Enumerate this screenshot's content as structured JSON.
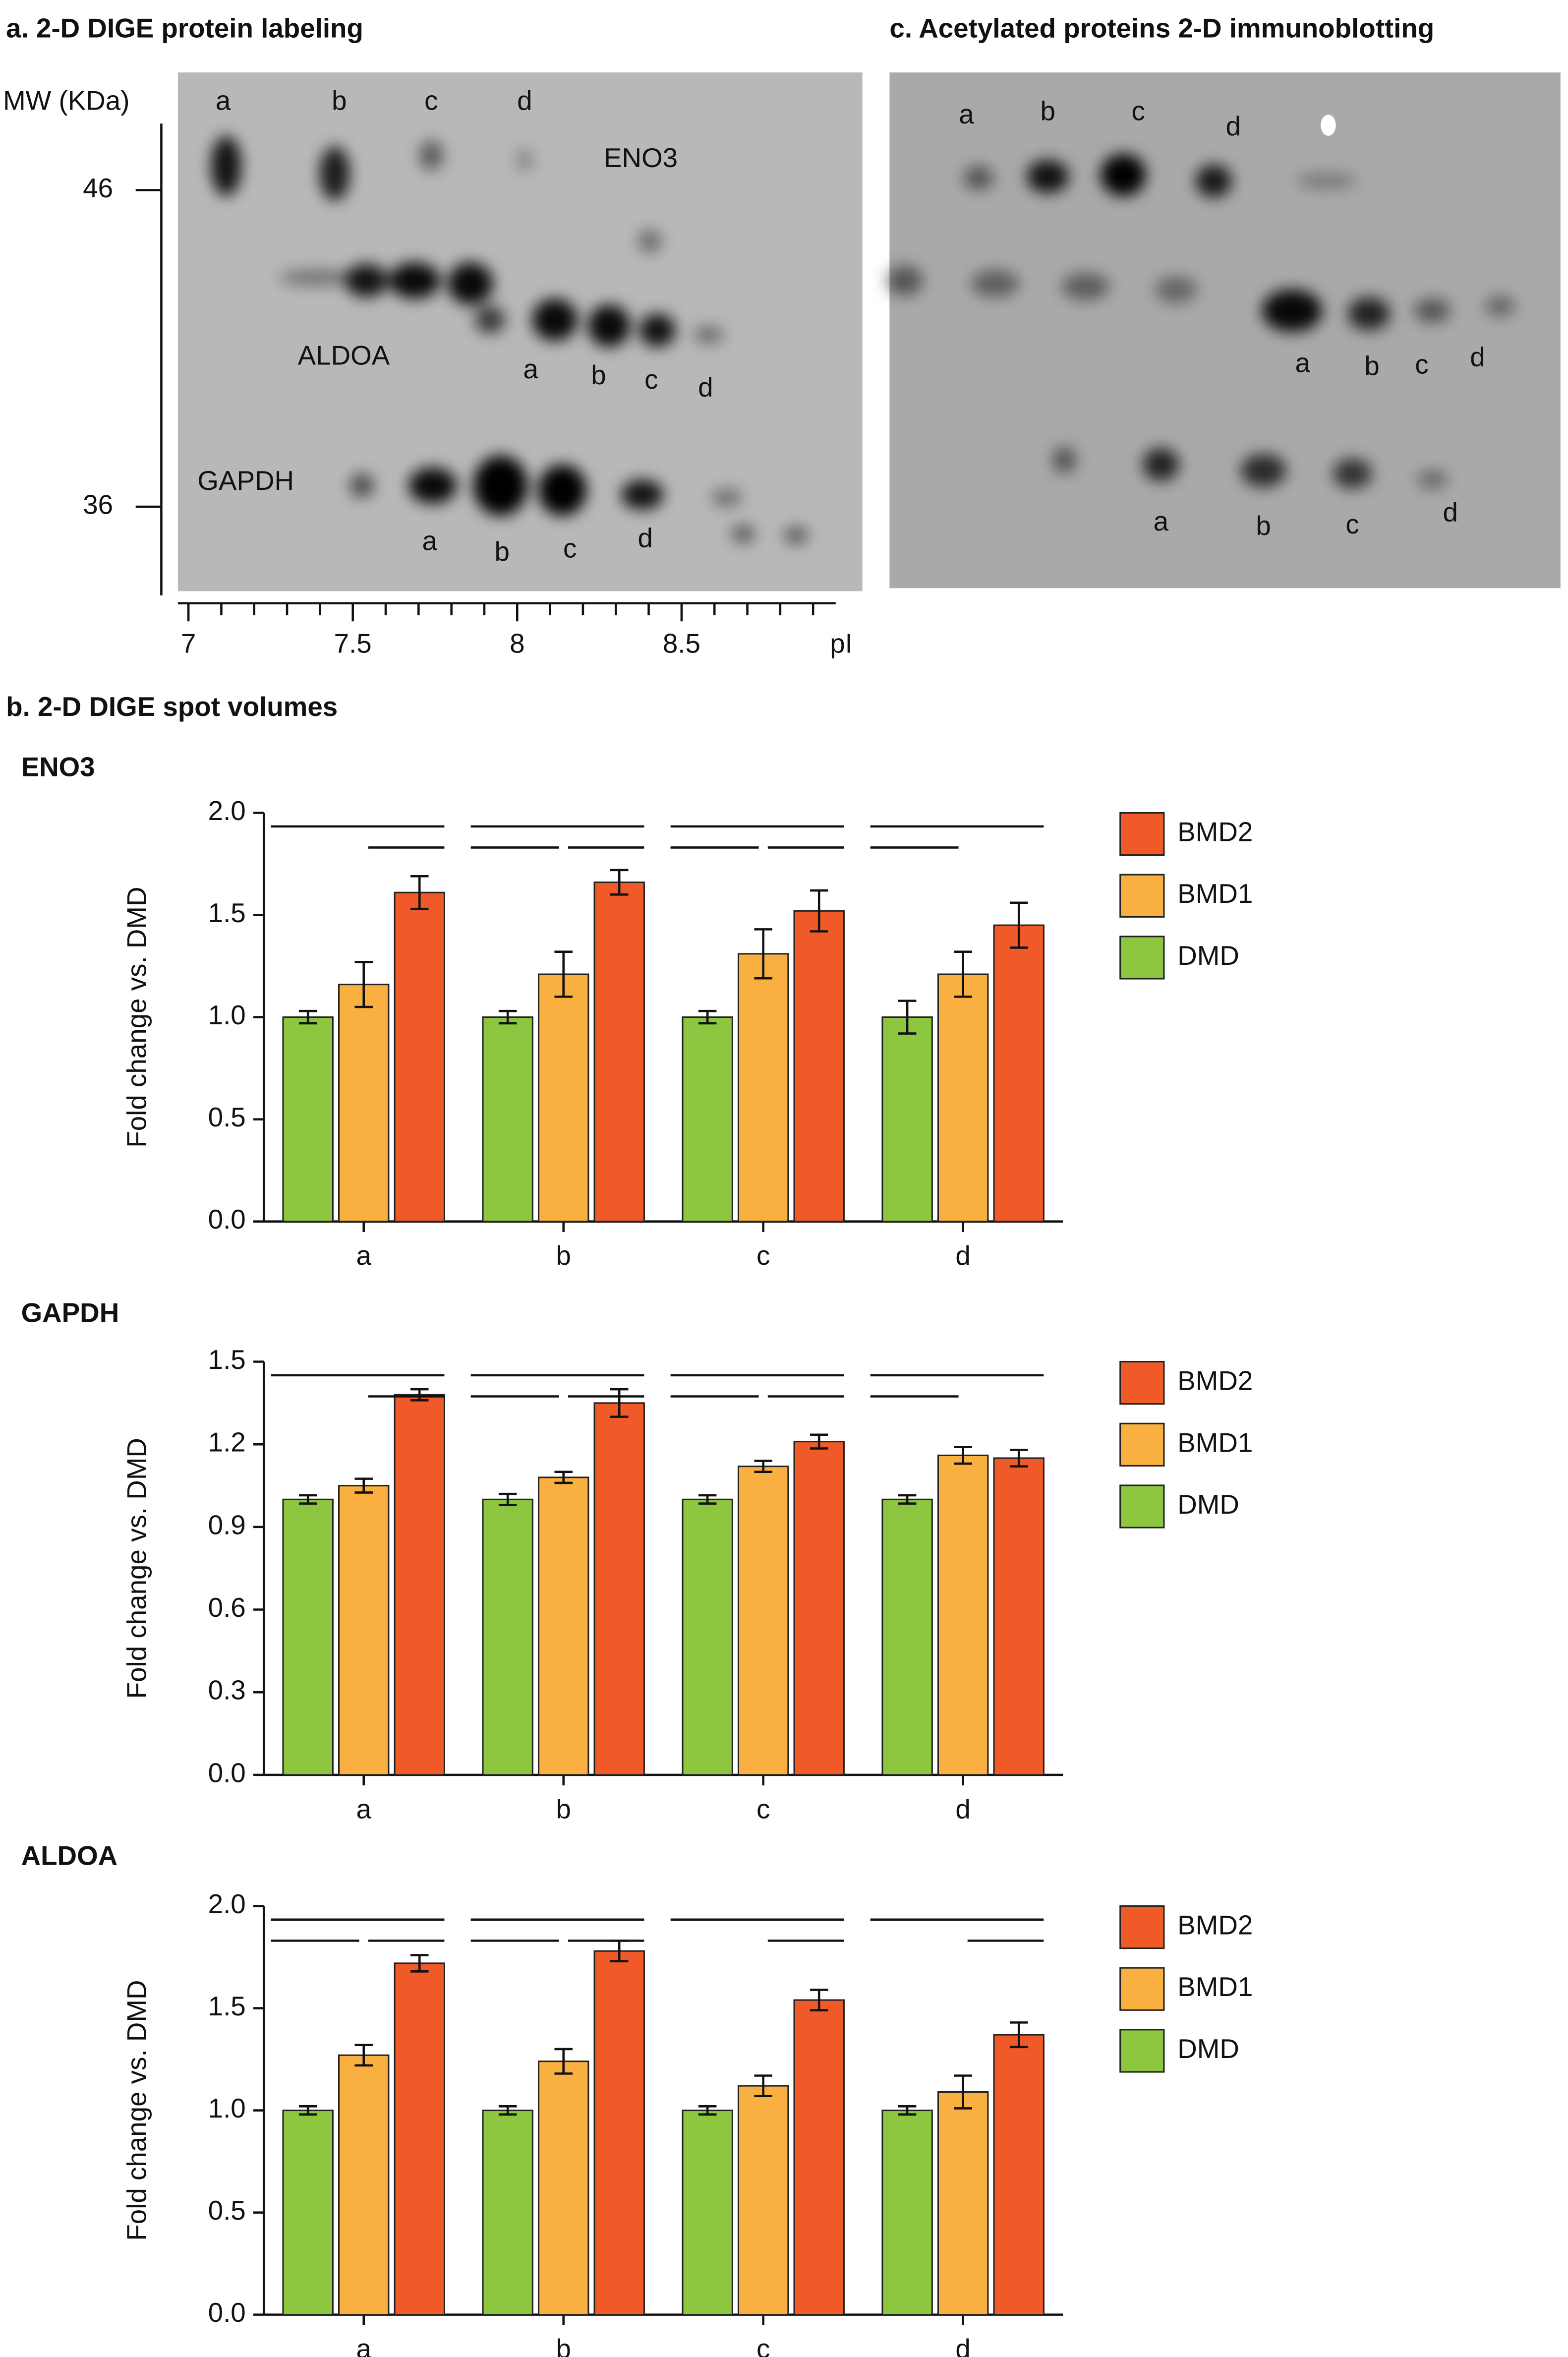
{
  "section_title": "b. 2-D DIGE spot volumes",
  "gels": [
    {
      "title": "a. 2-D DIGE protein labeling",
      "y_label": "MW (KDa)",
      "ylim": [
        33.2,
        48.1
      ],
      "yticks": [
        46,
        36
      ],
      "x_label": "pI",
      "xlim": [
        6.968,
        9.05
      ],
      "xticks": [
        7,
        7.5,
        8,
        8.5
      ],
      "xminorticks": [
        7.1,
        7.2,
        7.3,
        7.4,
        7.6,
        7.7,
        7.8,
        7.9,
        8.1,
        8.2,
        8.3,
        8.4,
        8.6,
        8.7,
        8.8,
        8.9
      ],
      "proteins": [
        "ENO3",
        "ALDOA",
        "GAPDH"
      ],
      "spot_labels": [
        [
          "a",
          "b",
          "c",
          "d"
        ],
        [
          "a",
          "b",
          "c",
          "d"
        ],
        [
          "a",
          "b",
          "c",
          "d"
        ]
      ]
    },
    {
      "title": "c. Acetylated proteins 2-D immunoblotting",
      "spot_labels": [
        [
          "a",
          "b",
          "c",
          "d"
        ],
        [
          "a",
          "b",
          "c",
          "d"
        ],
        [
          "a",
          "b",
          "c",
          "d"
        ]
      ]
    }
  ],
  "chart_data": [
    {
      "type": "bar",
      "title": "ENO3",
      "y_label": "Fold change vs. DMD",
      "categories": [
        "a",
        "b",
        "c",
        "d"
      ],
      "ylim": [
        0,
        2
      ],
      "yticks": [
        {
          "value": 0,
          "label": "0.0"
        },
        0.5,
        {
          "value": 1,
          "label": "1.0"
        },
        1.5,
        {
          "value": 2,
          "label": "2.0"
        }
      ],
      "series": [
        {
          "name": "DMD",
          "color": "#8dc63f",
          "values": [
            1.0,
            1.0,
            1.0,
            1.0
          ],
          "errors": [
            0.03,
            0.03,
            0.03,
            0.08
          ]
        },
        {
          "name": "BMD1",
          "color": "#f9b040",
          "values": [
            1.16,
            1.21,
            1.31,
            1.21
          ],
          "errors": [
            0.11,
            0.11,
            0.12,
            0.11
          ]
        },
        {
          "name": "BMD2",
          "color": "#f05a28",
          "values": [
            1.61,
            1.66,
            1.52,
            1.45
          ],
          "errors": [
            0.08,
            0.06,
            0.1,
            0.11
          ]
        }
      ]
    },
    {
      "type": "bar",
      "title": "GAPDH",
      "y_label": "Fold change vs. DMD",
      "categories": [
        "a",
        "b",
        "c",
        "d"
      ],
      "ylim": [
        0,
        1.5
      ],
      "yticks": [
        {
          "value": 0,
          "label": "0.0"
        },
        0.3,
        0.6,
        0.9,
        1.2,
        1.5
      ],
      "series": [
        {
          "name": "DMD",
          "color": "#8dc63f",
          "values": [
            1.0,
            1.0,
            1.0,
            1.0
          ],
          "errors": [
            0.015,
            0.02,
            0.015,
            0.015
          ]
        },
        {
          "name": "BMD1",
          "color": "#f9b040",
          "values": [
            1.05,
            1.08,
            1.12,
            1.16
          ],
          "errors": [
            0.025,
            0.02,
            0.02,
            0.03
          ]
        },
        {
          "name": "BMD2",
          "color": "#f05a28",
          "values": [
            1.38,
            1.35,
            1.21,
            1.15
          ],
          "errors": [
            0.02,
            0.05,
            0.025,
            0.03
          ]
        }
      ]
    },
    {
      "type": "bar",
      "title": "ALDOA",
      "y_label": "Fold change vs. DMD",
      "categories": [
        "a",
        "b",
        "c",
        "d"
      ],
      "ylim": [
        0,
        2
      ],
      "yticks": [
        {
          "value": 0,
          "label": "0.0"
        },
        0.5,
        {
          "value": 1,
          "label": "1.0"
        },
        1.5,
        {
          "value": 2,
          "label": "2.0"
        }
      ],
      "series": [
        {
          "name": "DMD",
          "color": "#8dc63f",
          "values": [
            1.0,
            1.0,
            1.0,
            1.0
          ],
          "errors": [
            0.02,
            0.02,
            0.02,
            0.02
          ]
        },
        {
          "name": "BMD1",
          "color": "#f9b040",
          "values": [
            1.27,
            1.24,
            1.12,
            1.09
          ],
          "errors": [
            0.05,
            0.06,
            0.05,
            0.08
          ]
        },
        {
          "name": "BMD2",
          "color": "#f05a28",
          "values": [
            1.72,
            1.78,
            1.54,
            1.37
          ],
          "errors": [
            0.04,
            0.05,
            0.05,
            0.06
          ]
        }
      ]
    }
  ]
}
